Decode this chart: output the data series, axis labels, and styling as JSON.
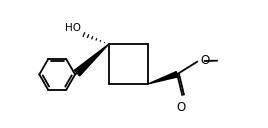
{
  "bg_color": "#ffffff",
  "line_color": "#000000",
  "line_width": 1.3,
  "text_color": "#000000",
  "HO_label": "HO",
  "O_label": "O",
  "label_fontsize": 7.5,
  "figsize": [
    2.68,
    1.28
  ],
  "dpi": 100
}
